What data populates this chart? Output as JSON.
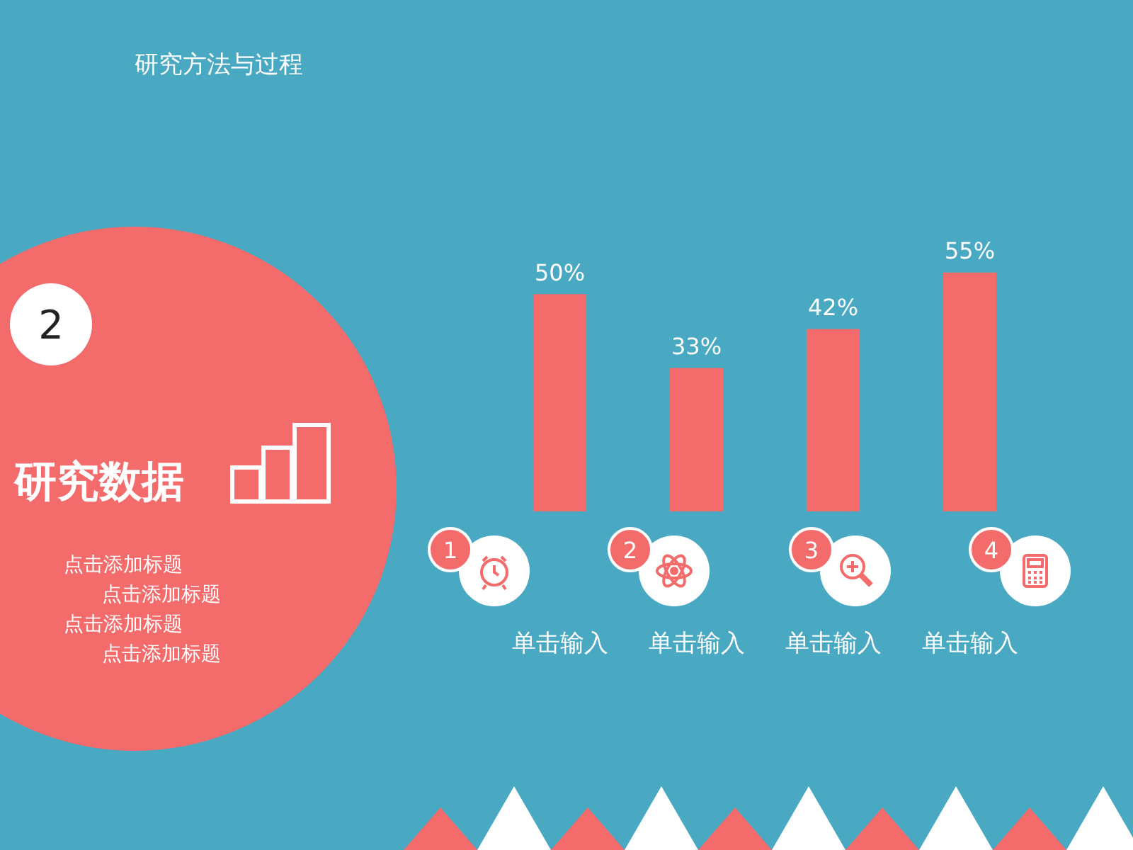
{
  "chart_data": {
    "type": "bar",
    "title": "研究方法与过程",
    "subtitle": "研究数据",
    "categories": [
      "单击输入",
      "单击输入",
      "单击输入",
      "单击输入"
    ],
    "values": [
      50,
      33,
      42,
      55
    ],
    "value_labels": [
      "50%",
      "33%",
      "42%",
      "55%"
    ],
    "color": "#f36b6b",
    "annotations": [
      "2",
      "点击添加标题",
      "点击添加标题",
      "点击添加标题",
      "点击添加标题",
      "1",
      "2",
      "3",
      "4"
    ],
    "grid": false,
    "legend": false
  }
}
